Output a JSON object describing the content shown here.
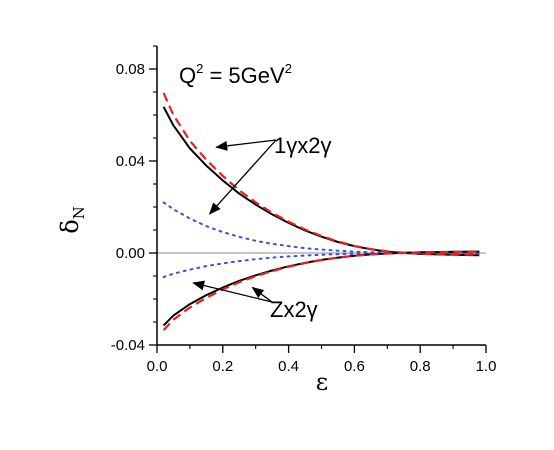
{
  "chart_data": {
    "type": "line",
    "title": "Q² = 5GeV²",
    "title_parts": {
      "q": "Q",
      "q_exp": "2",
      "eq": " = 5GeV",
      "unit_exp": "2"
    },
    "xlabel": "ε",
    "ylabel": "δ",
    "ylabel_sub": "N",
    "xlim": [
      0.0,
      1.0
    ],
    "ylim": [
      -0.04,
      0.09
    ],
    "x_ticks": [
      "0.0",
      "0.2",
      "0.4",
      "0.6",
      "0.8",
      "1.0"
    ],
    "y_ticks": [
      "-0.04",
      "0.00",
      "0.04",
      "0.08"
    ],
    "grid": false,
    "zero_line": true,
    "annotations": [
      {
        "text": "1γx2γ",
        "points_to": [
          [
            0.18,
            0.046
          ],
          [
            0.16,
            0.017
          ]
        ]
      },
      {
        "text": "Zx2γ",
        "points_to": [
          [
            0.11,
            -0.013
          ],
          [
            0.29,
            -0.015
          ]
        ]
      }
    ],
    "colors": {
      "solid": "#000000",
      "dashed": "#e32222",
      "dotted": "#3f51d6",
      "zero": "#8c8c8c"
    },
    "x": [
      0.02,
      0.05,
      0.1,
      0.15,
      0.2,
      0.25,
      0.3,
      0.35,
      0.4,
      0.45,
      0.5,
      0.55,
      0.6,
      0.65,
      0.7,
      0.75,
      0.8,
      0.85,
      0.9,
      0.95,
      0.98
    ],
    "series": [
      {
        "style": "solid",
        "values": [
          0.0635,
          0.0555,
          0.0455,
          0.038,
          0.0315,
          0.0258,
          0.021,
          0.0168,
          0.0131,
          0.0098,
          0.0071,
          0.0048,
          0.003,
          0.0016,
          0.0006,
          0.0,
          -0.0004,
          -0.0006,
          -0.0008,
          -0.0009,
          -0.001
        ]
      },
      {
        "style": "dashed",
        "values": [
          0.0695,
          0.06,
          0.0488,
          0.0405,
          0.0335,
          0.0272,
          0.022,
          0.0175,
          0.0136,
          0.0102,
          0.0074,
          0.005,
          0.0031,
          0.0017,
          0.0007,
          0.0001,
          -0.0003,
          -0.0005,
          -0.0006,
          -0.0007,
          -0.0007
        ]
      },
      {
        "style": "dotted",
        "values": [
          0.022,
          0.019,
          0.015,
          0.0117,
          0.0091,
          0.007,
          0.0053,
          0.004,
          0.003,
          0.0021,
          0.0015,
          0.001,
          0.0006,
          0.0003,
          0.0001,
          0.0,
          -0.0001,
          -0.0001,
          -0.0001,
          -0.0001,
          -0.0001
        ]
      },
      {
        "style": "dotted",
        "values": [
          -0.0105,
          -0.009,
          -0.0072,
          -0.0057,
          -0.0045,
          -0.0035,
          -0.0027,
          -0.002,
          -0.0015,
          -0.0011,
          -0.0008,
          -0.0005,
          -0.0003,
          -0.0002,
          -0.0001,
          0.0,
          0.0001,
          0.0001,
          0.0001,
          0.0001,
          0.0001
        ]
      },
      {
        "style": "solid",
        "values": [
          -0.0315,
          -0.0272,
          -0.0222,
          -0.0183,
          -0.015,
          -0.0121,
          -0.0097,
          -0.0076,
          -0.0058,
          -0.0043,
          -0.003,
          -0.002,
          -0.0012,
          -0.0006,
          -0.0002,
          0.0001,
          0.0003,
          0.0004,
          0.0005,
          0.0006,
          0.0006
        ]
      },
      {
        "style": "dashed",
        "values": [
          -0.0335,
          -0.029,
          -0.0237,
          -0.0195,
          -0.0158,
          -0.0127,
          -0.0101,
          -0.0079,
          -0.006,
          -0.0044,
          -0.0031,
          -0.002,
          -0.0012,
          -0.0006,
          -0.0002,
          0.0,
          0.0002,
          0.0003,
          0.0004,
          0.0004,
          0.0004
        ]
      }
    ]
  }
}
